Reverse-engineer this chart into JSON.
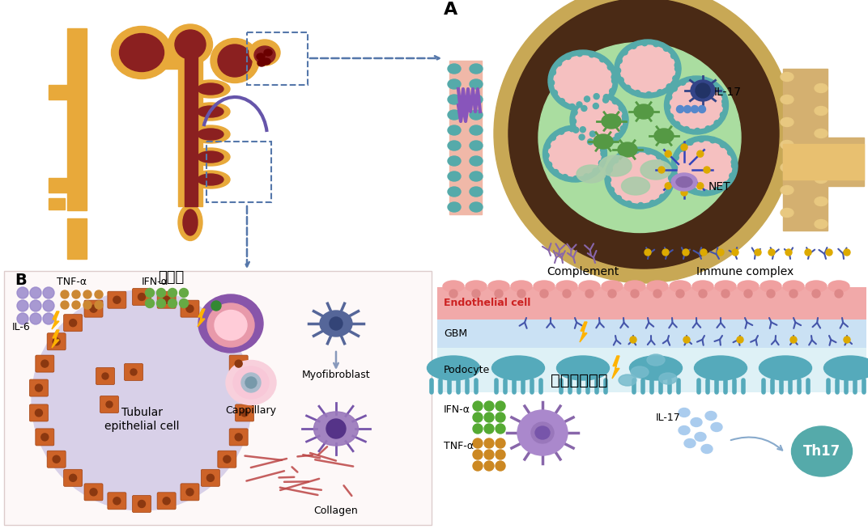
{
  "bg_color": "#ffffff",
  "panel_A_label": "A",
  "panel_B_label": "B",
  "chinese_title_B": "周细胞",
  "chinese_title_podocyte": "足突细胞损伤",
  "label_IL17": "IL-17",
  "label_NET": "NET",
  "label_IL6": "IL-6",
  "label_TNFa": "TNF-α",
  "label_IFNa": "IFN-α",
  "label_tubular": "Tubular\nepithelial cell",
  "label_cappillary": "Cappillary",
  "label_myofibroblast": "Myofibroblast",
  "label_collagen": "Collagen",
  "label_endothelial": "Endothelial cell",
  "label_GBM": "GBM",
  "label_podocyte": "Podocyte",
  "label_complement": "Complement",
  "label_immune_complex": "Immune complex",
  "label_IFNa2": "IFN-α",
  "label_TNFa2": "TNF-α",
  "label_IL17_2": "IL-17",
  "label_Th17": "Th17",
  "colors": {
    "nephron_yellow": "#E8A93A",
    "nephron_red": "#8B2020",
    "nephron_purple": "#6655AA",
    "arrow_blue": "#5577AA",
    "panel_b_bg": "#FDF8F8",
    "panel_b_border": "#DDCCCC",
    "lavender_ring": "#D8D0E8",
    "orange_cell": "#CD6328",
    "orange_cell_dark": "#8B3810",
    "pericyte_purple": "#8855AA",
    "pericyte_pink_outer": "#E899AA",
    "pericyte_pink_inner": "#FFCCD8",
    "cappillary_pink": "#F8B8CC",
    "cappillary_dot": "#AA88AA",
    "myofib_blue": "#556699",
    "collagen_red": "#AA3333",
    "glom_outer_tan": "#C8A855",
    "glom_dark_brown": "#4A2A15",
    "glom_mesangium_green": "#AADDA0",
    "glom_caploop_teal": "#55AAAA",
    "glom_caploop_pink": "#F0AAAA",
    "glom_caploop_dots": "#CC8888",
    "glom_meso_green_dark": "#559944",
    "glom_meso_green_light": "#AACCAA",
    "vessel_left_pink": "#F0B0B0",
    "vessel_left_teal": "#55AAAA",
    "vessel_left_purple": "#8866BB",
    "ureter_tan": "#D4B070",
    "ureter_cell": "#E8C880",
    "il17_cell_blue": "#334488",
    "net_purple": "#7755AA",
    "net_blue": "#3344AA",
    "net_yellow": "#DDAA00",
    "endo_pink": "#F0A0A0",
    "endo_text_red": "#CC2222",
    "gbm_blue": "#C8E0F4",
    "podocyte_teal": "#55AABB",
    "podocyte_teal2": "#77BBCC",
    "antibody_blue": "#4455AA",
    "antibody_purple": "#9977BB",
    "immune_yellow": "#DDAA00",
    "complement_purple": "#8866AA",
    "lightning": "#FFB300",
    "ifna_green": "#559944",
    "tnfa_orange": "#CC8822",
    "il17_dots_blue": "#99BBDD",
    "th17_teal": "#55AAAA",
    "immune_cell_purple": "#9977BB",
    "panel_b_border_right": "#E0D0D0"
  }
}
